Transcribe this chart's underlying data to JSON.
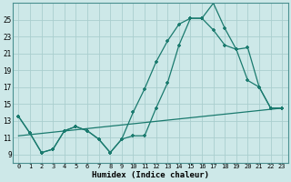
{
  "bg_color": "#cde8e8",
  "line_color": "#1a7a6e",
  "grid_color": "#aacece",
  "xlabel": "Humidex (Indice chaleur)",
  "xlim": [
    -0.5,
    23.5
  ],
  "ylim": [
    8.0,
    27.0
  ],
  "yticks": [
    9,
    11,
    13,
    15,
    17,
    19,
    21,
    23,
    25
  ],
  "xticks": [
    0,
    1,
    2,
    3,
    4,
    5,
    6,
    7,
    8,
    9,
    10,
    11,
    12,
    13,
    14,
    15,
    16,
    17,
    18,
    19,
    20,
    21,
    22,
    23
  ],
  "line1_x": [
    0,
    1,
    2,
    3,
    4,
    5,
    6,
    7,
    8,
    9,
    10,
    11,
    12,
    13,
    14,
    15,
    16,
    17,
    18,
    19,
    20,
    21,
    22,
    23
  ],
  "line1_y": [
    13.5,
    11.5,
    9.2,
    9.6,
    11.8,
    12.3,
    11.8,
    10.8,
    9.2,
    10.8,
    11.2,
    11.2,
    14.5,
    17.5,
    22.0,
    25.2,
    25.2,
    27.0,
    24.0,
    21.5,
    17.8,
    17.0,
    14.5,
    14.5
  ],
  "line2_x": [
    0,
    1,
    2,
    3,
    4,
    5,
    6,
    7,
    8,
    9,
    10,
    11,
    12,
    13,
    14,
    15,
    16,
    17,
    18,
    19,
    20,
    21,
    22,
    23
  ],
  "line2_y": [
    13.5,
    11.5,
    9.2,
    9.6,
    11.8,
    12.3,
    11.8,
    10.8,
    9.2,
    10.8,
    14.0,
    16.8,
    20.0,
    22.5,
    24.5,
    25.2,
    25.2,
    23.8,
    22.0,
    21.5,
    21.7,
    17.0,
    14.5,
    14.5
  ],
  "line3_x": [
    0,
    23
  ],
  "line3_y": [
    11.2,
    14.5
  ]
}
